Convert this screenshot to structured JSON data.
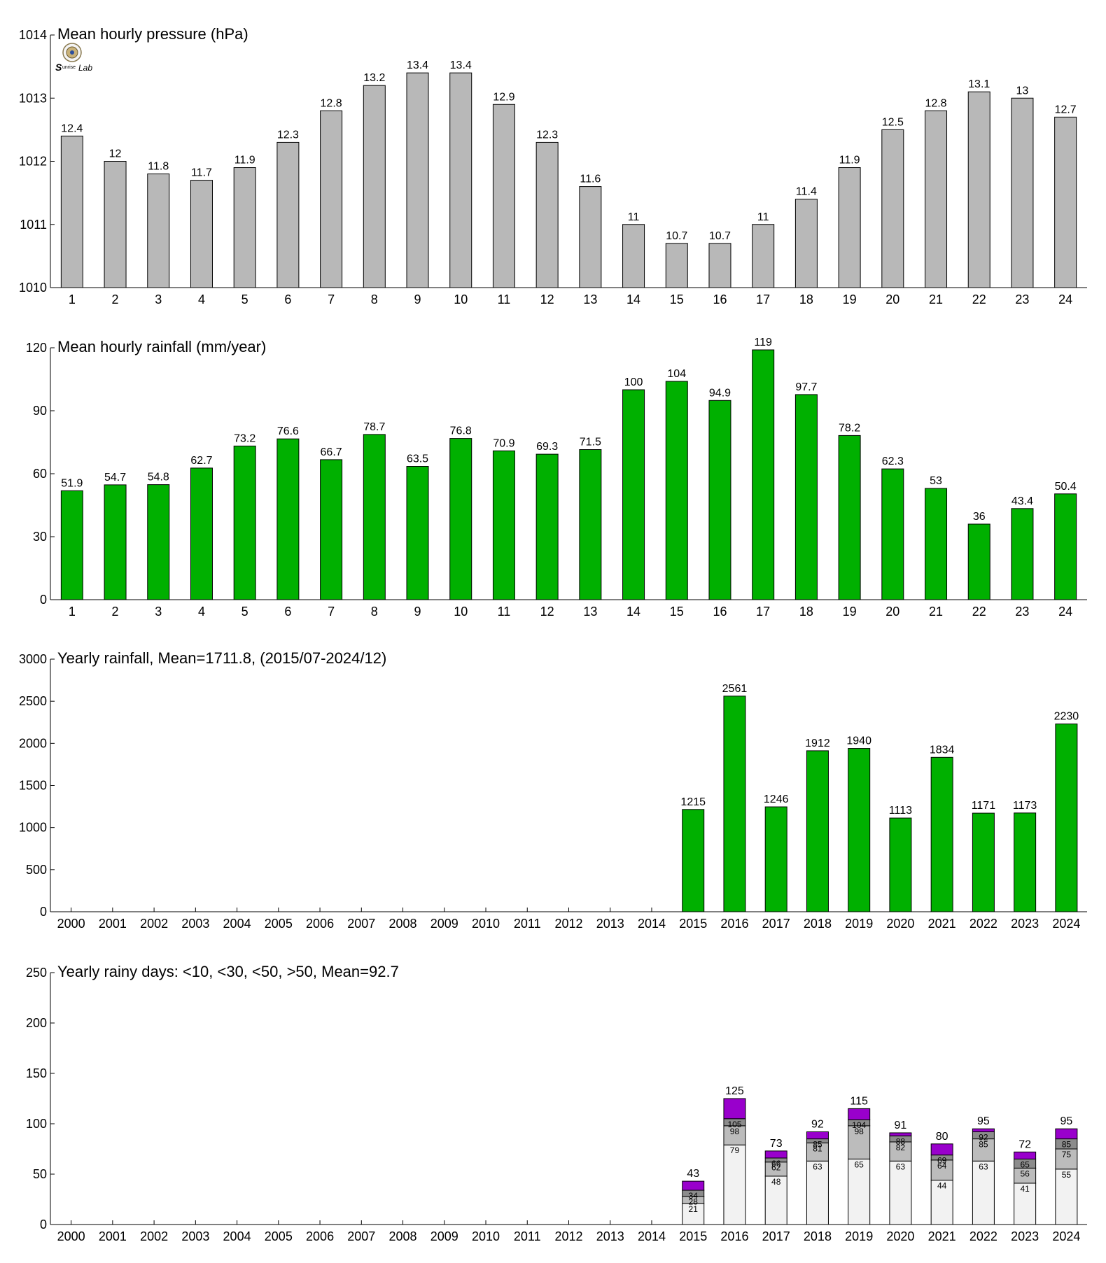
{
  "chart_data": [
    {
      "type": "bar",
      "title": "Mean hourly pressure (hPa)",
      "categories": [
        "1",
        "2",
        "3",
        "4",
        "5",
        "6",
        "7",
        "8",
        "9",
        "10",
        "11",
        "12",
        "13",
        "14",
        "15",
        "16",
        "17",
        "18",
        "19",
        "20",
        "21",
        "22",
        "23",
        "24"
      ],
      "values": [
        1012.4,
        1012.0,
        1011.8,
        1011.7,
        1011.9,
        1012.3,
        1012.8,
        1013.2,
        1013.4,
        1013.4,
        1012.9,
        1012.3,
        1011.6,
        1011.0,
        1010.7,
        1010.7,
        1011.0,
        1011.4,
        1011.9,
        1012.5,
        1012.8,
        1013.1,
        1013.0,
        1012.7
      ],
      "labels": [
        "12.4",
        "12",
        "11.8",
        "11.7",
        "11.9",
        "12.3",
        "12.8",
        "13.2",
        "13.4",
        "13.4",
        "12.9",
        "12.3",
        "11.6",
        "11",
        "10.7",
        "10.7",
        "11",
        "11.4",
        "11.9",
        "12.5",
        "12.8",
        "13.1",
        "13",
        "12.7"
      ],
      "ylim": [
        1010,
        1014
      ],
      "yticks": [
        "1010",
        "1011",
        "1012",
        "1013",
        "1014"
      ],
      "color": "#b8b8b8"
    },
    {
      "type": "bar",
      "title": "Mean hourly rainfall (mm/year)",
      "categories": [
        "1",
        "2",
        "3",
        "4",
        "5",
        "6",
        "7",
        "8",
        "9",
        "10",
        "11",
        "12",
        "13",
        "14",
        "15",
        "16",
        "17",
        "18",
        "19",
        "20",
        "21",
        "22",
        "23",
        "24"
      ],
      "values": [
        51.9,
        54.7,
        54.8,
        62.7,
        73.2,
        76.6,
        66.7,
        78.7,
        63.5,
        76.8,
        70.9,
        69.3,
        71.5,
        100,
        104,
        94.9,
        119,
        97.7,
        78.2,
        62.3,
        53,
        36,
        43.4,
        50.4
      ],
      "labels": [
        "51.9",
        "54.7",
        "54.8",
        "62.7",
        "73.2",
        "76.6",
        "66.7",
        "78.7",
        "63.5",
        "76.8",
        "70.9",
        "69.3",
        "71.5",
        "100",
        "104",
        "94.9",
        "119",
        "97.7",
        "78.2",
        "62.3",
        "53",
        "36",
        "43.4",
        "50.4"
      ],
      "ylim": [
        0,
        120
      ],
      "yticks": [
        "0",
        "30",
        "60",
        "90",
        "120"
      ],
      "color": "#00b000"
    },
    {
      "type": "bar",
      "title": "Yearly rainfall, Mean=1711.8, (2015/07-2024/12)",
      "categories": [
        "2000",
        "2001",
        "2002",
        "2003",
        "2004",
        "2005",
        "2006",
        "2007",
        "2008",
        "2009",
        "2010",
        "2011",
        "2012",
        "2013",
        "2014",
        "2015",
        "2016",
        "2017",
        "2018",
        "2019",
        "2020",
        "2021",
        "2022",
        "2023",
        "2024"
      ],
      "values": [
        null,
        null,
        null,
        null,
        null,
        null,
        null,
        null,
        null,
        null,
        null,
        null,
        null,
        null,
        null,
        1215,
        2561,
        1246,
        1912,
        1940,
        1113,
        1834,
        1171,
        1173,
        2230
      ],
      "labels": [
        "",
        "",
        "",
        "",
        "",
        "",
        "",
        "",
        "",
        "",
        "",
        "",
        "",
        "",
        "",
        "1215",
        "2561",
        "1246",
        "1912",
        "1940",
        "1113",
        "1834",
        "1171",
        "1173",
        "2230"
      ],
      "ylim": [
        0,
        3000
      ],
      "yticks": [
        "0",
        "500",
        "1000",
        "1500",
        "2000",
        "2500",
        "3000"
      ],
      "color": "#00b000"
    },
    {
      "type": "bar",
      "stacked": true,
      "title": "Yearly rainy days: <10, <30, <50, >50, Mean=92.7",
      "categories": [
        "2000",
        "2001",
        "2002",
        "2003",
        "2004",
        "2005",
        "2006",
        "2007",
        "2008",
        "2009",
        "2010",
        "2011",
        "2012",
        "2013",
        "2014",
        "2015",
        "2016",
        "2017",
        "2018",
        "2019",
        "2020",
        "2021",
        "2022",
        "2023",
        "2024"
      ],
      "first_index": 15,
      "cumulative": [
        [
          21,
          28,
          34,
          43
        ],
        [
          79,
          98,
          105,
          125
        ],
        [
          48,
          62,
          66,
          73
        ],
        [
          63,
          81,
          85,
          92
        ],
        [
          65,
          98,
          104,
          115
        ],
        [
          63,
          82,
          88,
          91
        ],
        [
          44,
          64,
          69,
          80
        ],
        [
          63,
          85,
          92,
          95
        ],
        [
          41,
          56,
          65,
          72
        ],
        [
          55,
          75,
          85,
          95
        ]
      ],
      "segment_labels": [
        [
          "21",
          "28",
          "34",
          ""
        ],
        [
          "79",
          "98",
          "105",
          ""
        ],
        [
          "48",
          "62",
          "66",
          ""
        ],
        [
          "63",
          "81",
          "85",
          ""
        ],
        [
          "65",
          "98",
          "104",
          ""
        ],
        [
          "63",
          "82",
          "88",
          ""
        ],
        [
          "44",
          "64",
          "69",
          ""
        ],
        [
          "63",
          "85",
          "92",
          ""
        ],
        [
          "41",
          "56",
          "65",
          ""
        ],
        [
          "55",
          "75",
          "85",
          ""
        ]
      ],
      "totals": [
        "43",
        "125",
        "73",
        "92",
        "115",
        "91",
        "80",
        "95",
        "72",
        "95"
      ],
      "ylim": [
        0,
        250
      ],
      "yticks": [
        "0",
        "50",
        "100",
        "150",
        "200",
        "250"
      ],
      "colors": [
        "#f2f2f2",
        "#bcbcbc",
        "#8c8c8c",
        "#9900cc"
      ]
    }
  ],
  "logo": {
    "text": "Sunrise Lab"
  }
}
